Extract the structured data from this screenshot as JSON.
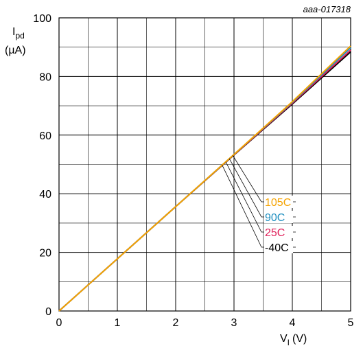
{
  "chart_data": {
    "type": "line",
    "watermark": "aaa-017318",
    "ylabel_main": "I",
    "ylabel_sub": "pd",
    "ylabel_unit": "(µA)",
    "xlabel_main": "V",
    "xlabel_sub": "I",
    "xlabel_unit": "(V)",
    "xlim": [
      0,
      5
    ],
    "ylim": [
      0,
      100
    ],
    "xticks": [
      "0",
      "1",
      "2",
      "3",
      "4",
      "5"
    ],
    "yticks": [
      "0",
      "20",
      "40",
      "60",
      "80",
      "100"
    ],
    "grid": true,
    "series": [
      {
        "name": "105C",
        "color": "#f5a300",
        "x": [
          0,
          1,
          2,
          3,
          4,
          5
        ],
        "y": [
          0,
          17.8,
          35.6,
          53.4,
          71.4,
          90.4
        ]
      },
      {
        "name": "90C",
        "color": "#1f8fc0",
        "x": [
          0,
          1,
          2,
          3,
          4,
          5
        ],
        "y": [
          0,
          17.8,
          35.6,
          53.4,
          71.2,
          89.8
        ]
      },
      {
        "name": "25C",
        "color": "#e0205a",
        "x": [
          0,
          1,
          2,
          3,
          4,
          5
        ],
        "y": [
          0,
          17.8,
          35.6,
          53.3,
          70.9,
          89.0
        ]
      },
      {
        "name": "-40C",
        "color": "#000000",
        "x": [
          0,
          1,
          2,
          3,
          4,
          5
        ],
        "y": [
          0,
          17.8,
          35.6,
          53.2,
          70.6,
          88.4
        ]
      }
    ]
  }
}
